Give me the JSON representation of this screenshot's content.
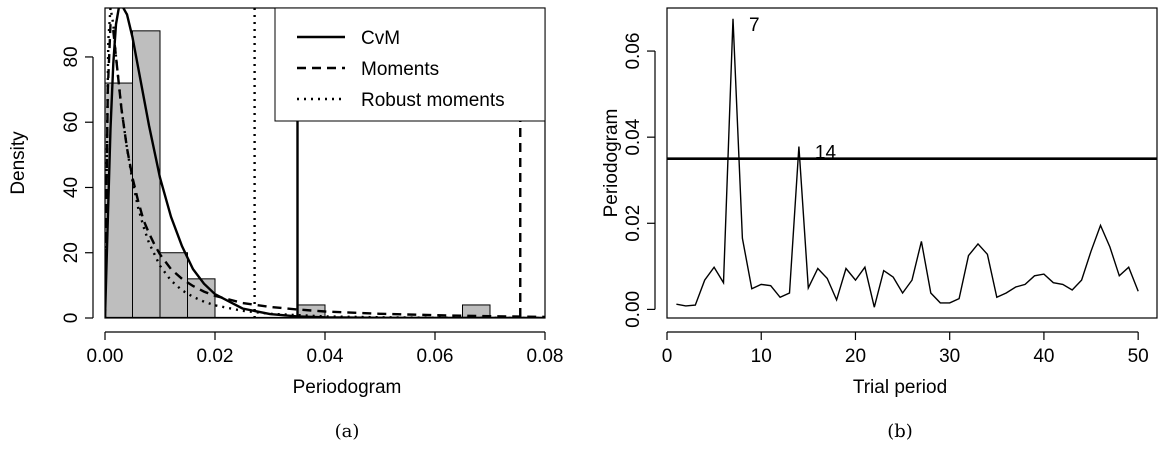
{
  "chart_data": [
    {
      "type": "histogram",
      "caption": "(a)",
      "xlabel": "Periodogram",
      "ylabel": "Density",
      "xlim": [
        0.0,
        0.08
      ],
      "ylim": [
        0,
        95
      ],
      "x_ticks": [
        0.0,
        0.02,
        0.04,
        0.06,
        0.08
      ],
      "x_tick_labels": [
        "0.00",
        "0.02",
        "0.04",
        "0.06",
        "0.08"
      ],
      "y_ticks": [
        0,
        20,
        40,
        60,
        80
      ],
      "y_tick_labels": [
        "0",
        "20",
        "40",
        "60",
        "80"
      ],
      "bins": [
        {
          "x0": 0.0,
          "x1": 0.005,
          "density": 72
        },
        {
          "x0": 0.005,
          "x1": 0.01,
          "density": 88
        },
        {
          "x0": 0.01,
          "x1": 0.015,
          "density": 20
        },
        {
          "x0": 0.015,
          "x1": 0.02,
          "density": 12
        },
        {
          "x0": 0.035,
          "x1": 0.04,
          "density": 4
        },
        {
          "x0": 0.065,
          "x1": 0.07,
          "density": 4
        }
      ],
      "series": [
        {
          "name": "CvM",
          "style": "solid",
          "threshold": 0.035
        },
        {
          "name": "Moments",
          "style": "dashed",
          "threshold": 0.0755
        },
        {
          "name": "Robust moments",
          "style": "dotted",
          "threshold": 0.0272
        }
      ],
      "curves": {
        "CvM": {
          "x": [
            0,
            0.0005,
            0.001,
            0.0015,
            0.002,
            0.0025,
            0.003,
            0.004,
            0.005,
            0.006,
            0.007,
            0.008,
            0.009,
            0.01,
            0.012,
            0.014,
            0.016,
            0.018,
            0.02,
            0.025,
            0.03,
            0.035,
            0.04,
            0.05,
            0.06,
            0.07,
            0.08
          ],
          "y": [
            0,
            30,
            58,
            78,
            90,
            95,
            96,
            93,
            86,
            77,
            68,
            59,
            51,
            43,
            31,
            22,
            15,
            10.5,
            7.3,
            2.9,
            1.2,
            0.5,
            0.2,
            0.05,
            0.02,
            0.01,
            0
          ]
        },
        "Moments": {
          "x": [
            0,
            0.0005,
            0.001,
            0.0015,
            0.002,
            0.003,
            0.004,
            0.005,
            0.006,
            0.007,
            0.008,
            0.009,
            0.01,
            0.012,
            0.014,
            0.016,
            0.018,
            0.02,
            0.025,
            0.03,
            0.035,
            0.04,
            0.05,
            0.06,
            0.07,
            0.08
          ],
          "y": [
            0,
            70,
            90,
            88,
            80,
            64,
            52,
            43,
            36,
            30,
            26,
            22.5,
            19.5,
            15,
            12,
            9.8,
            8.1,
            6.8,
            4.6,
            3.4,
            2.6,
            2.0,
            1.3,
            0.85,
            0.55,
            0.35
          ]
        },
        "Robust moments": {
          "x": [
            0,
            0.0003,
            0.0006,
            0.001,
            0.0015,
            0.002,
            0.003,
            0.004,
            0.005,
            0.006,
            0.007,
            0.008,
            0.01,
            0.012,
            0.014,
            0.016,
            0.018,
            0.02,
            0.025,
            0.03,
            0.04,
            0.05,
            0.06,
            0.08
          ],
          "y": [
            0,
            45,
            85,
            95,
            90,
            80,
            64,
            52,
            42,
            34,
            28,
            23,
            16,
            11.5,
            8.5,
            6.5,
            5,
            3.9,
            2.2,
            1.3,
            0.5,
            0.2,
            0.1,
            0
          ]
        }
      },
      "legend_position": "top-right"
    },
    {
      "type": "line",
      "caption": "(b)",
      "xlabel": "Trial period",
      "ylabel": "Periodogram",
      "xlim": [
        0,
        52
      ],
      "ylim": [
        -0.002,
        0.07
      ],
      "x_ticks": [
        0,
        10,
        20,
        30,
        40,
        50
      ],
      "x_tick_labels": [
        "0",
        "10",
        "20",
        "30",
        "40",
        "50"
      ],
      "y_ticks": [
        0.0,
        0.02,
        0.04,
        0.06
      ],
      "y_tick_labels": [
        "0.00",
        "0.02",
        "0.04",
        "0.06"
      ],
      "threshold": 0.035,
      "annotations": [
        {
          "text": "7",
          "x": 7,
          "y": 0.0675
        },
        {
          "text": "14",
          "x": 14,
          "y": 0.0378
        }
      ],
      "x": [
        1,
        2,
        3,
        4,
        5,
        6,
        7,
        8,
        9,
        10,
        11,
        12,
        13,
        14,
        15,
        16,
        17,
        18,
        19,
        20,
        21,
        22,
        23,
        24,
        25,
        26,
        27,
        28,
        29,
        30,
        31,
        32,
        33,
        34,
        35,
        36,
        37,
        38,
        39,
        40,
        41,
        42,
        43,
        44,
        45,
        46,
        47,
        48,
        49,
        50
      ],
      "y": [
        0.0012,
        0.0008,
        0.001,
        0.0068,
        0.0098,
        0.0062,
        0.0675,
        0.0165,
        0.0048,
        0.0058,
        0.0055,
        0.0028,
        0.0038,
        0.0378,
        0.005,
        0.0095,
        0.0072,
        0.0022,
        0.0095,
        0.0068,
        0.0098,
        0.0005,
        0.009,
        0.0075,
        0.0038,
        0.0068,
        0.0158,
        0.0038,
        0.0015,
        0.0015,
        0.0025,
        0.0125,
        0.0152,
        0.0128,
        0.0028,
        0.0038,
        0.0052,
        0.0058,
        0.0078,
        0.0082,
        0.0062,
        0.0058,
        0.0045,
        0.0068,
        0.0135,
        0.0195,
        0.0145,
        0.0078,
        0.0098,
        0.0042
      ]
    }
  ]
}
